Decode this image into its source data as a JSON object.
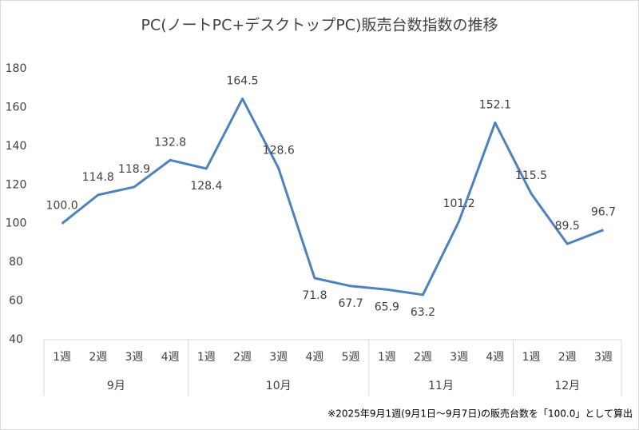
{
  "chart_data": {
    "type": "line",
    "title": "PC(ノートPC+デスクトップPC)販売台数指数の推移",
    "categories": [
      "1週",
      "2週",
      "3週",
      "4週",
      "1週",
      "2週",
      "3週",
      "4週",
      "5週",
      "1週",
      "2週",
      "3週",
      "4週",
      "1週",
      "2週",
      "3週"
    ],
    "category_groups": [
      "9月",
      null,
      null,
      null,
      "10月",
      null,
      null,
      null,
      null,
      "11月",
      null,
      null,
      null,
      "12月",
      null,
      null
    ],
    "series": [
      {
        "color": "#4f81bd",
        "values": [
          100.0,
          114.8,
          118.9,
          132.8,
          128.4,
          164.5,
          128.6,
          71.8,
          67.7,
          65.9,
          63.2,
          101.2,
          152.1,
          115.5,
          89.5,
          96.7
        ],
        "value_labels": [
          "100.0",
          "114.8",
          "118.9",
          "132.8",
          "128.4",
          "164.5",
          "128.6",
          "71.8",
          "67.7",
          "65.9",
          "63.2",
          "101.2",
          "152.1",
          "115.5",
          "89.5",
          "96.7"
        ]
      }
    ],
    "ylim": [
      40,
      180
    ],
    "yticks": [
      40,
      60,
      80,
      100,
      120,
      140,
      160,
      180
    ],
    "grid": false,
    "note": "※2025年9月1週(9月1日～9月7日)の販売台数を「100.0」として算出"
  }
}
